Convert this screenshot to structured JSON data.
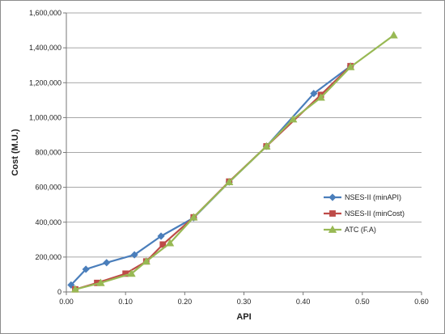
{
  "chart_data": {
    "type": "line",
    "title": "",
    "xlabel": "API",
    "ylabel": "Cost (M.U.)",
    "xlim": [
      0,
      0.6
    ],
    "ylim": [
      0,
      1600000
    ],
    "x_ticks": [
      "0.00",
      "0.10",
      "0.20",
      "0.30",
      "0.40",
      "0.50",
      "0.60"
    ],
    "y_ticks": [
      "0",
      "200,000",
      "400,000",
      "600,000",
      "800,000",
      "1,000,000",
      "1,200,000",
      "1,400,000",
      "1,600,000"
    ],
    "grid": "horizontal",
    "legend_position": "right",
    "series": [
      {
        "name": "NSES-II (minAPI)",
        "color": "#4a7ebb",
        "marker": "diamond",
        "points": [
          [
            0.008,
            40000
          ],
          [
            0.033,
            130000
          ],
          [
            0.068,
            168000
          ],
          [
            0.115,
            213000
          ],
          [
            0.16,
            320000
          ],
          [
            0.215,
            425000
          ],
          [
            0.275,
            630000
          ],
          [
            0.338,
            835000
          ],
          [
            0.418,
            1138000
          ],
          [
            0.48,
            1295000
          ]
        ]
      },
      {
        "name": "NSES-II (minCost)",
        "color": "#be4b48",
        "marker": "square",
        "points": [
          [
            0.015,
            15000
          ],
          [
            0.052,
            52000
          ],
          [
            0.1,
            105000
          ],
          [
            0.135,
            175000
          ],
          [
            0.163,
            272000
          ],
          [
            0.215,
            428000
          ],
          [
            0.275,
            633000
          ],
          [
            0.338,
            835000
          ],
          [
            0.43,
            1130000
          ],
          [
            0.48,
            1295000
          ]
        ]
      },
      {
        "name": "ATC (F.A)",
        "color": "#98b954",
        "marker": "triangle",
        "points": [
          [
            0.015,
            15000
          ],
          [
            0.058,
            52000
          ],
          [
            0.11,
            105000
          ],
          [
            0.135,
            175000
          ],
          [
            0.175,
            280000
          ],
          [
            0.215,
            428000
          ],
          [
            0.275,
            630000
          ],
          [
            0.338,
            835000
          ],
          [
            0.383,
            990000
          ],
          [
            0.43,
            1115000
          ],
          [
            0.48,
            1290000
          ],
          [
            0.553,
            1472000
          ]
        ]
      }
    ]
  }
}
